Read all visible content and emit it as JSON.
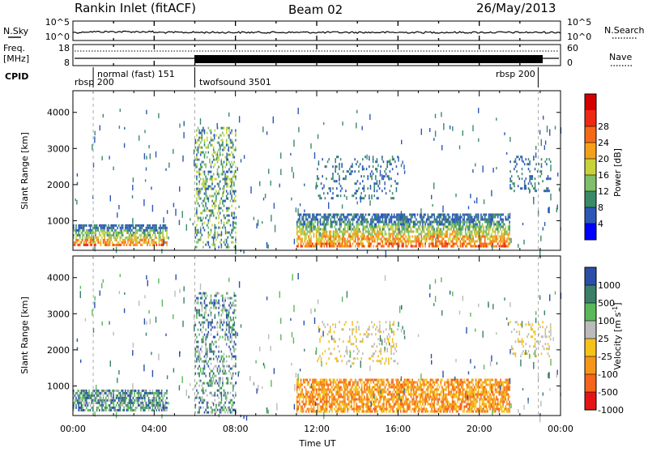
{
  "header": {
    "station": "Rankin Inlet (fitACF)",
    "beam": "Beam 02",
    "date": "26/May/2013"
  },
  "noise_panel": {
    "left_label": "N.Sky",
    "right_label": "N.Search",
    "left_ticks": [
      "10^5",
      "10^0"
    ],
    "right_ticks": [
      "10^5",
      "10^0"
    ]
  },
  "freq_panel": {
    "left_label_1": "Freq.",
    "left_label_2": "[MHz]",
    "left_ticks": [
      "18",
      "8"
    ],
    "right_label": "Nave",
    "right_ticks": [
      "60",
      "0"
    ]
  },
  "cpid": {
    "label": "CPID",
    "modes": [
      {
        "name": "rbsp 200",
        "start_hour": 0.0,
        "end_hour": 1.0
      },
      {
        "name": "normal (fast) 151",
        "start_hour": 1.0,
        "end_hour": 6.0
      },
      {
        "name": "twofsound 3501",
        "start_hour": 6.0,
        "end_hour": 22.9
      },
      {
        "name": "rbsp 200",
        "start_hour": 22.9,
        "end_hour": 24.0
      }
    ]
  },
  "colors": {
    "power_scale": [
      "#0000ff",
      "#2b58b8",
      "#3a8a6a",
      "#7fbf6a",
      "#c8d23a",
      "#f5a01a",
      "#f56a1a",
      "#ee2a12",
      "#d40000"
    ],
    "velocity_scale": [
      "#2b4fa8",
      "#3a7f6a",
      "#5ab85a",
      "#bbbbbb",
      "#f5c21a",
      "#f5961a",
      "#f5651a",
      "#e61515"
    ]
  },
  "chart_data": [
    {
      "type": "heatmap",
      "name": "power",
      "ylabel": "Slant Range [km]",
      "xlabel": "",
      "ylim": [
        180,
        4600
      ],
      "xlim": [
        0,
        24
      ],
      "y_ticks": [
        1000,
        2000,
        3000,
        4000
      ],
      "colorbar": {
        "label": "Power [dB]",
        "ticks": [
          "4",
          "8",
          "12",
          "16",
          "20",
          "24",
          "28"
        ],
        "range": [
          0,
          32
        ]
      },
      "features": [
        {
          "hours": [
            0.0,
            4.6
          ],
          "range_km": [
            300,
            900
          ],
          "level": "strong"
        },
        {
          "hours": [
            6.0,
            8.0
          ],
          "range_km": [
            300,
            3600
          ],
          "level": "moderate"
        },
        {
          "hours": [
            11.0,
            21.5
          ],
          "range_km": [
            300,
            1200
          ],
          "level": "strong"
        },
        {
          "hours": [
            12.0,
            16.0
          ],
          "range_km": [
            1600,
            2800
          ],
          "level": "weak"
        },
        {
          "hours": [
            21.5,
            23.5
          ],
          "range_km": [
            1800,
            2800
          ],
          "level": "weak"
        }
      ]
    },
    {
      "type": "heatmap",
      "name": "velocity",
      "ylabel": "Slant Range [km]",
      "xlabel": "Time UT",
      "ylim": [
        180,
        4600
      ],
      "xlim": [
        0,
        24
      ],
      "y_ticks": [
        1000,
        2000,
        3000,
        4000
      ],
      "x_tick_labels": [
        "00:00",
        "04:00",
        "08:00",
        "12:00",
        "16:00",
        "20:00",
        "00:00"
      ],
      "colorbar": {
        "label": "Velocity [m s^-1]",
        "ticks": [
          "1000",
          "500",
          "100",
          "25",
          "-25",
          "-100",
          "-500",
          "-1000"
        ]
      },
      "features": [
        {
          "hours": [
            0.0,
            4.6
          ],
          "range_km": [
            300,
            900
          ],
          "sign": "positive"
        },
        {
          "hours": [
            6.0,
            8.0
          ],
          "range_km": [
            300,
            3600
          ],
          "sign": "positive"
        },
        {
          "hours": [
            11.0,
            21.5
          ],
          "range_km": [
            300,
            1200
          ],
          "sign": "negative"
        },
        {
          "hours": [
            12.0,
            16.0
          ],
          "range_km": [
            1600,
            2800
          ],
          "sign": "near-zero"
        },
        {
          "hours": [
            21.5,
            23.5
          ],
          "range_km": [
            1800,
            2800
          ],
          "sign": "near-zero"
        }
      ]
    }
  ]
}
